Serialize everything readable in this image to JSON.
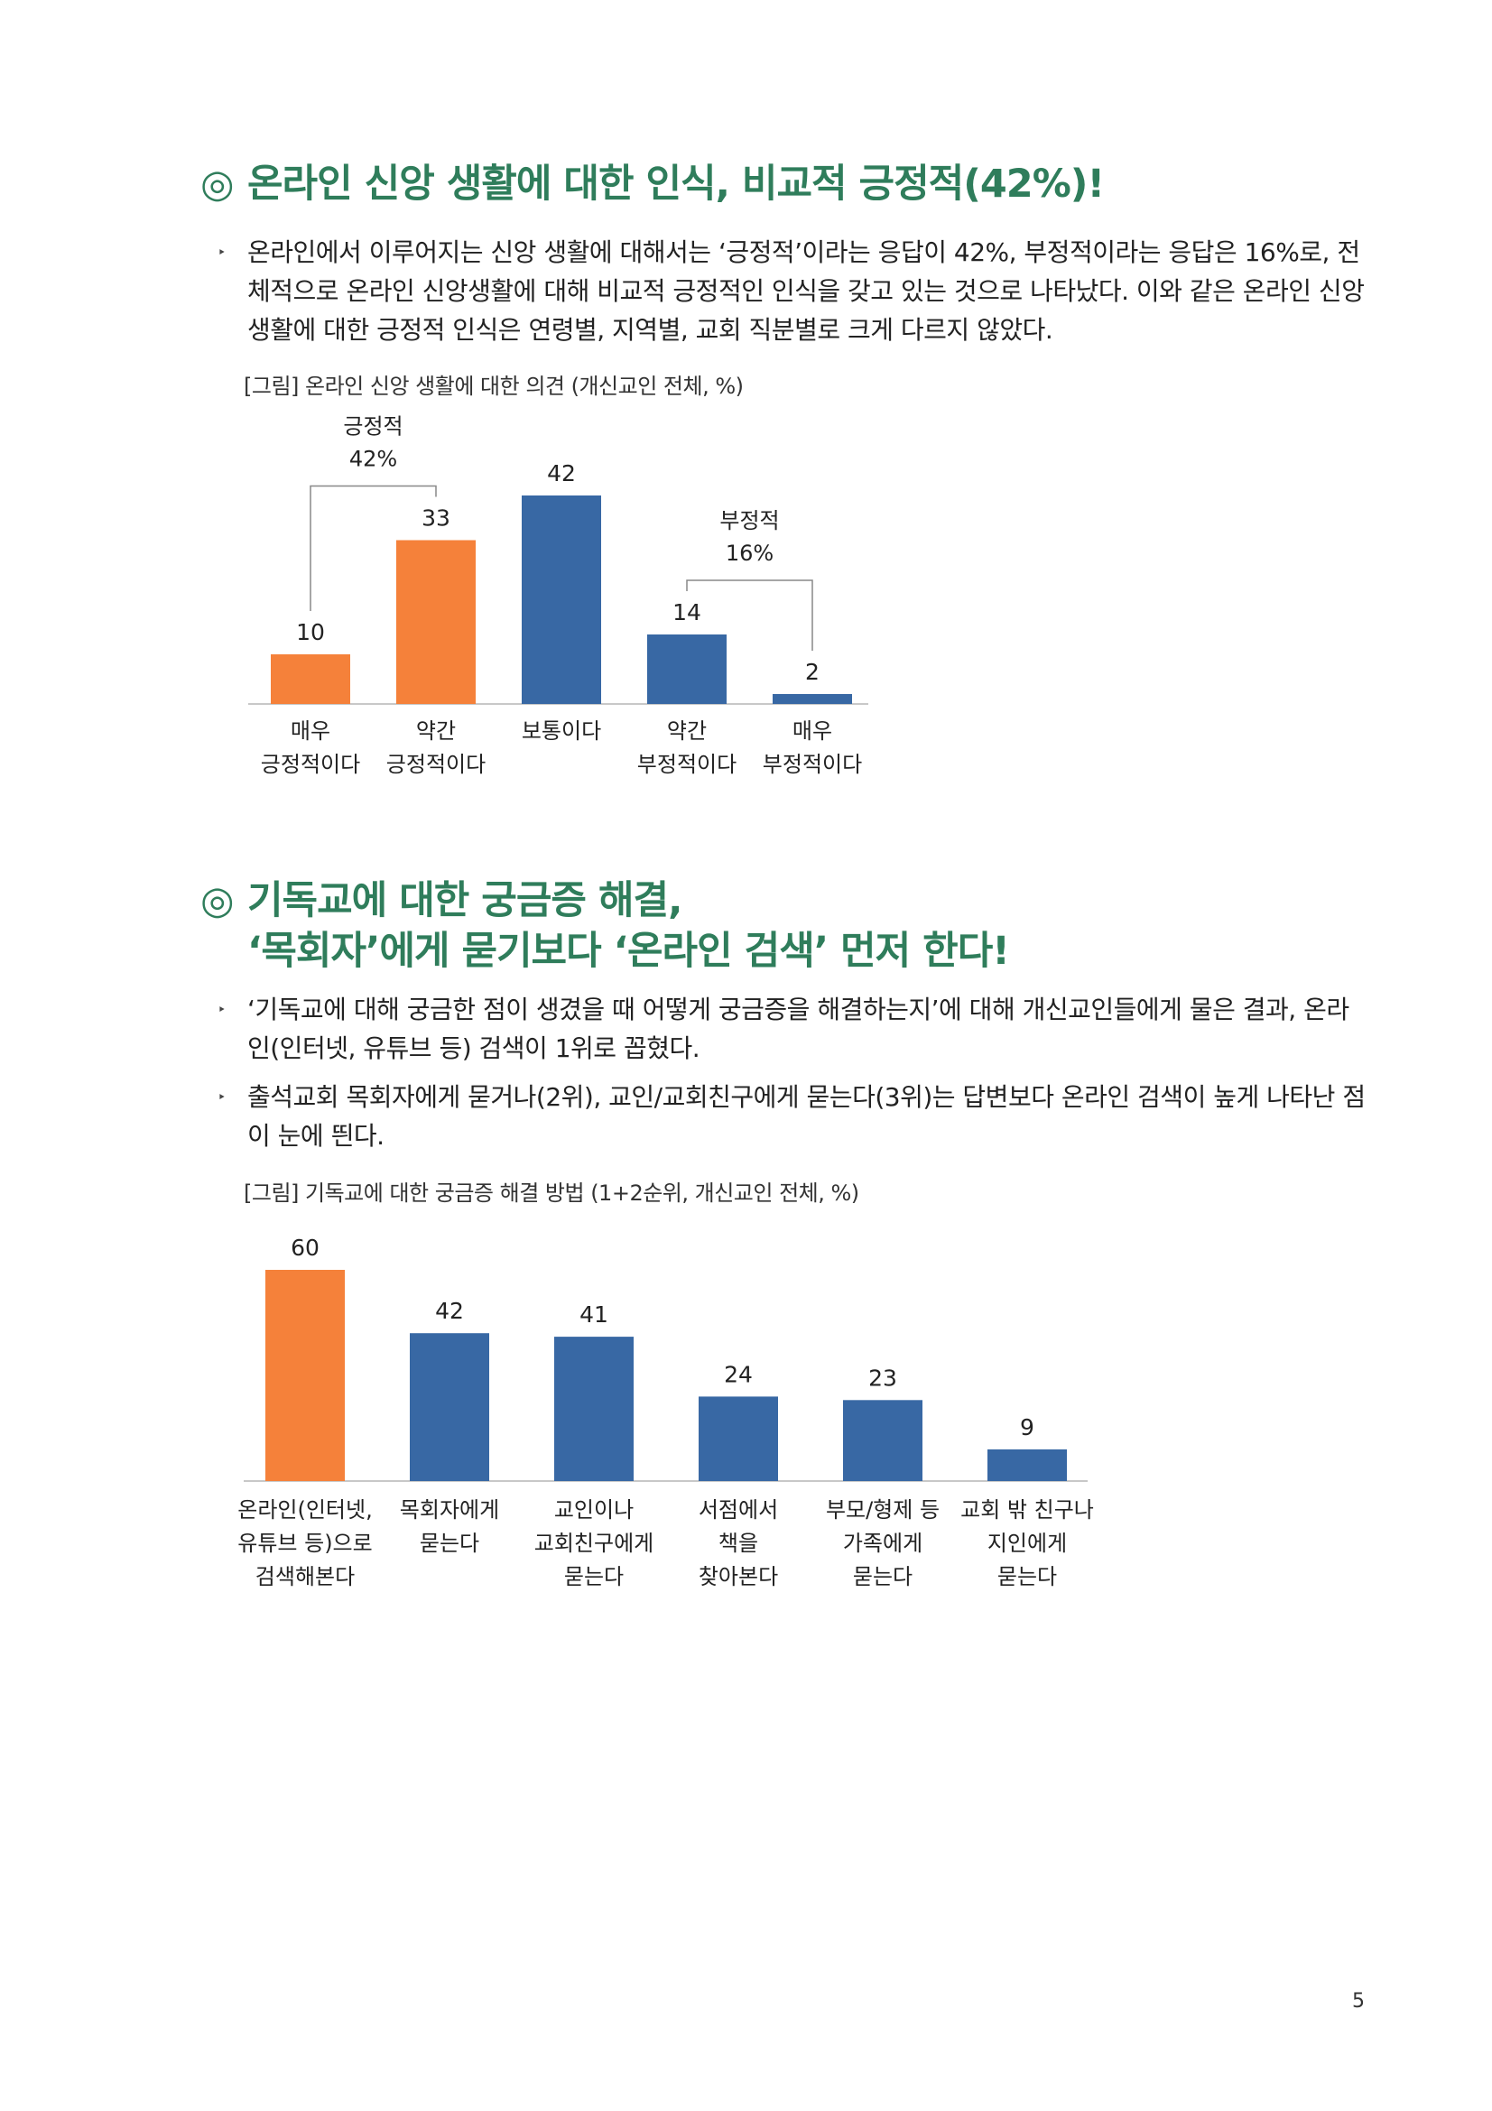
{
  "section1": {
    "heading_mark": "◎",
    "heading": "온라인 신앙 생활에 대한 인식, 비교적 긍정적(42%)!",
    "bullets": [
      "온라인에서 이루어지는 신앙 생활에 대해서는 ‘긍정적’이라는 응답이 42%, 부정적이라는 응답은 16%로, 전체적으로 온라인 신앙생활에 대해 비교적 긍정적인 인식을 갖고 있는 것으로 나타났다. 이와 같은 온라인 신앙생활에 대한 긍정적 인식은 연령별, 지역별, 교회 직분별로 크게 다르지 않았다."
    ],
    "caption": "[그림] 온라인 신앙 생활에 대한 의견 (개신교인 전체, %)"
  },
  "section2": {
    "heading_mark": "◎",
    "heading_line1": "기독교에 대한 궁금증 해결,",
    "heading_line2": "‘목회자’에게 묻기보다 ‘온라인 검색’ 먼저 한다!",
    "bullets": [
      "‘기독교에 대해 궁금한 점이 생겼을 때 어떻게 궁금증을 해결하는지’에 대해 개신교인들에게 물은 결과, 온라인(인터넷, 유튜브 등) 검색이 1위로 꼽혔다.",
      "출석교회 목회자에게 묻거나(2위), 교인/교회친구에게 묻는다(3위)는 답변보다 온라인 검색이 높게 나타난 점이 눈에 띈다."
    ],
    "caption": "[그림] 기독교에 대한 궁금증 해결 방법 (1+2순위, 개신교인 전체, %)"
  },
  "bullet_mark": "‣",
  "colors": {
    "orange": "#f5813a",
    "blue": "#3868a4",
    "green": "#2f7d5b"
  },
  "chart_data": [
    {
      "type": "bar",
      "categories": [
        [
          "매우",
          "긍정적이다"
        ],
        [
          "약간",
          "긍정적이다"
        ],
        [
          "보통이다"
        ],
        [
          "약간",
          "부정적이다"
        ],
        [
          "매우",
          "부정적이다"
        ]
      ],
      "values": [
        10,
        33,
        42,
        14,
        2
      ],
      "value_labels": [
        "10",
        "33",
        "42",
        "14",
        "2"
      ],
      "bar_colors": [
        "orange",
        "orange",
        "blue",
        "blue",
        "blue"
      ],
      "annotations": [
        {
          "lines": [
            "긍정적",
            "42%"
          ],
          "from": 0,
          "to": 1
        },
        {
          "lines": [
            "부정적",
            "16%"
          ],
          "from": 3,
          "to": 4
        }
      ],
      "ylim": [
        0,
        42
      ]
    },
    {
      "type": "bar",
      "categories": [
        [
          "온라인(인터넷,",
          "유튜브 등)으로",
          "검색해본다"
        ],
        [
          "목회자에게",
          "묻는다"
        ],
        [
          "교인이나",
          "교회친구에게",
          "묻는다"
        ],
        [
          "서점에서",
          "책을",
          "찾아본다"
        ],
        [
          "부모/형제 등",
          "가족에게",
          "묻는다"
        ],
        [
          "교회 밖 친구나",
          "지인에게",
          "묻는다"
        ]
      ],
      "values": [
        60,
        42,
        41,
        24,
        23,
        9
      ],
      "value_labels": [
        "60",
        "42",
        "41",
        "24",
        "23",
        "9"
      ],
      "bar_colors": [
        "orange",
        "blue",
        "blue",
        "blue",
        "blue",
        "blue"
      ],
      "ylim": [
        0,
        60
      ]
    }
  ],
  "page_number": "5"
}
